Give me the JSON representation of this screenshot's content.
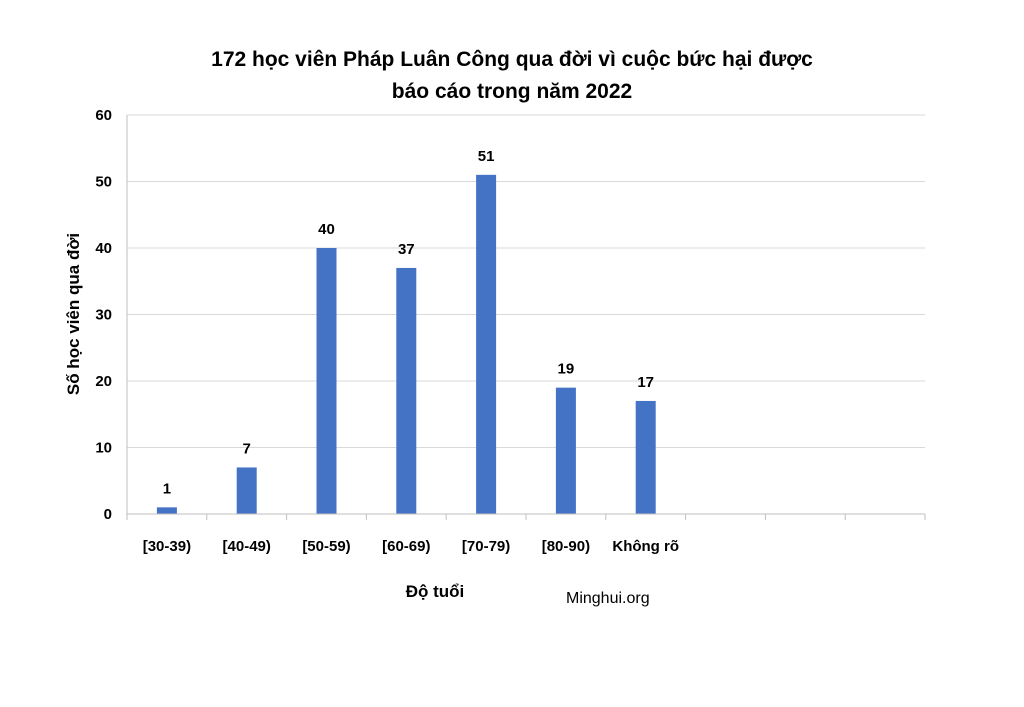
{
  "chart_data": {
    "type": "bar",
    "title_lines": [
      "172 học viên Pháp Luân Công qua đời vì cuộc bức hại được",
      "báo cáo trong năm 2022"
    ],
    "xlabel": "Độ tuổi",
    "ylabel": "Số học viên qua đời",
    "categories": [
      "[30-39)",
      "[40-49)",
      "[50-59)",
      "[60-69)",
      "[70-79)",
      "[80-90)",
      "Không rõ"
    ],
    "values": [
      1,
      7,
      40,
      37,
      51,
      19,
      17
    ],
    "ylim": [
      0,
      60
    ],
    "yticks": [
      0,
      10,
      20,
      30,
      40,
      50,
      60
    ],
    "total_slots": 10,
    "grid": true,
    "bar_color": "#4472C4",
    "data_labels": true
  },
  "source": "Minghui.org"
}
